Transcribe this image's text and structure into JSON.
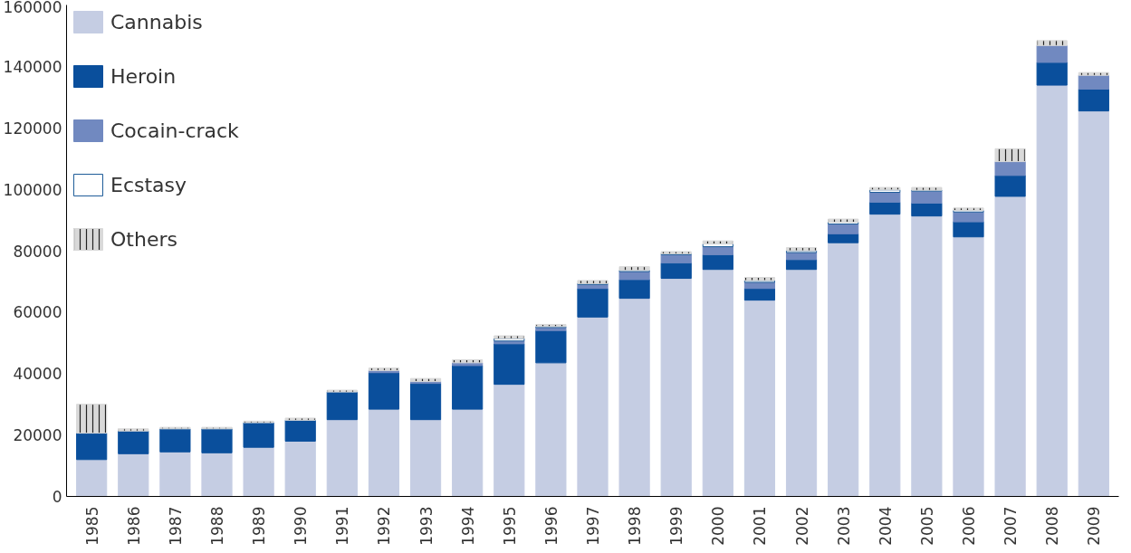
{
  "chart_data": {
    "type": "bar",
    "stacked": true,
    "categories": [
      "1985",
      "1986",
      "1987",
      "1988",
      "1989",
      "1990",
      "1991",
      "1992",
      "1993",
      "1994",
      "1995",
      "1996",
      "1997",
      "1998",
      "1999",
      "2000",
      "2001",
      "2002",
      "2003",
      "2004",
      "2005",
      "2006",
      "2007",
      "2008",
      "2009"
    ],
    "series": [
      {
        "name": "Cannabis",
        "color": "#c5cde3",
        "values": [
          12000,
          13900,
          14500,
          14200,
          16000,
          18000,
          25000,
          28400,
          25000,
          28400,
          36500,
          43500,
          58400,
          64500,
          71000,
          73900,
          63900,
          73900,
          82600,
          91900,
          91300,
          84500,
          97700,
          133900,
          125500
        ]
      },
      {
        "name": "Heroin",
        "color": "#0a4f9c",
        "values": [
          8600,
          7400,
          7500,
          7800,
          8000,
          6800,
          9000,
          11900,
          11800,
          14200,
          13200,
          10500,
          9300,
          6100,
          5000,
          4800,
          3800,
          3200,
          2900,
          3900,
          4200,
          4900,
          6800,
          7400,
          7100
        ]
      },
      {
        "name": "Cocain-crack",
        "color": "#7189c0",
        "values": [
          0,
          0,
          0,
          0,
          0,
          0,
          0,
          700,
          600,
          900,
          900,
          1000,
          1300,
          2600,
          2700,
          2600,
          2000,
          2300,
          3200,
          3200,
          3900,
          3200,
          4500,
          5500,
          4500
        ]
      },
      {
        "name": "Ecstasy",
        "color": "#ffffff",
        "values": [
          0,
          0,
          0,
          0,
          0,
          0,
          0,
          0,
          0,
          0,
          800,
          300,
          300,
          400,
          300,
          900,
          600,
          600,
          600,
          800,
          300,
          500,
          0,
          0,
          0
        ]
      },
      {
        "name": "Others",
        "color": "#d9d9d9",
        "values": [
          9400,
          700,
          500,
          500,
          500,
          700,
          600,
          800,
          1000,
          1000,
          900,
          700,
          1000,
          1200,
          700,
          1000,
          1000,
          1000,
          1000,
          800,
          900,
          800,
          4200,
          1600,
          900
        ]
      }
    ],
    "ylim": [
      0,
      160000
    ],
    "yticks": [
      0,
      20000,
      40000,
      60000,
      80000,
      100000,
      120000,
      140000,
      160000
    ],
    "grid": false,
    "legend": "top left"
  }
}
